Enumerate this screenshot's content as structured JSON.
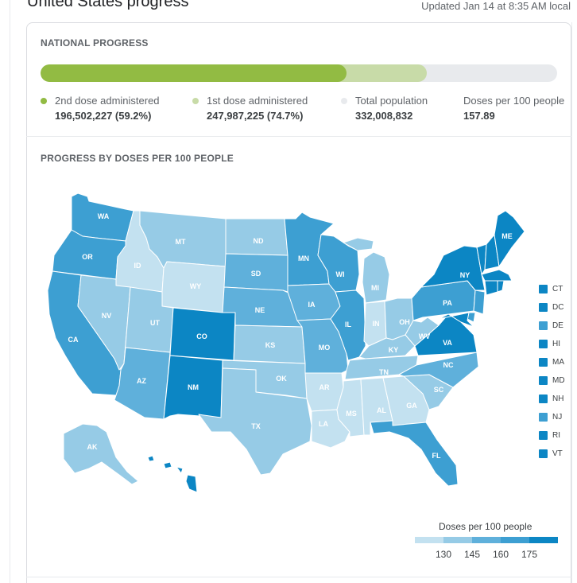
{
  "header": {
    "title": "United States progress",
    "updated": "Updated Jan 14 at 8:35 AM local"
  },
  "national": {
    "section_title": "NATIONAL PROGRESS",
    "second_dose_fraction": 0.592,
    "first_dose_fraction": 0.747,
    "stats": [
      {
        "label": "2nd dose administered",
        "value": "196,502,227 (59.2%)",
        "color": "#92bb43"
      },
      {
        "label": "1st dose administered",
        "value": "247,987,225 (74.7%)",
        "color": "#c8dba8"
      },
      {
        "label": "Total population",
        "value": "332,008,832",
        "color": "#e8eaed"
      },
      {
        "label": "Doses per 100 people",
        "value": "157.89",
        "color": ""
      }
    ]
  },
  "map_section": {
    "title": "PROGRESS BY DOSES PER 100 PEOPLE",
    "colors": {
      "c1": "#c3e1f0",
      "c2": "#96cbe6",
      "c3": "#5fb0db",
      "c4": "#3d9fd2",
      "c5": "#0c86c4"
    },
    "states": {
      "WA": "WA",
      "OR": "OR",
      "CA": "CA",
      "ID": "ID",
      "NV": "NV",
      "MT": "MT",
      "WY": "WY",
      "UT": "UT",
      "AZ": "AZ",
      "CO": "CO",
      "NM": "NM",
      "ND": "ND",
      "SD": "SD",
      "NE": "NE",
      "KS": "KS",
      "OK": "OK",
      "TX": "TX",
      "MN": "MN",
      "IA": "IA",
      "MO": "MO",
      "AR": "AR",
      "LA": "LA",
      "WI": "WI",
      "IL": "IL",
      "MI": "MI",
      "IN": "IN",
      "OH": "OH",
      "KY": "KY",
      "TN": "TN",
      "MS": "MS",
      "AL": "AL",
      "GA": "GA",
      "FL": "FL",
      "SC": "SC",
      "NC": "NC",
      "VA": "VA",
      "WV": "WV",
      "PA": "PA",
      "NY": "NY",
      "ME": "ME",
      "AK": "AK"
    },
    "small_states": [
      {
        "label": "CT",
        "color": "#0c86c4"
      },
      {
        "label": "DC",
        "color": "#0c86c4"
      },
      {
        "label": "DE",
        "color": "#3d9fd2"
      },
      {
        "label": "HI",
        "color": "#0c86c4"
      },
      {
        "label": "MA",
        "color": "#0c86c4"
      },
      {
        "label": "MD",
        "color": "#0c86c4"
      },
      {
        "label": "NH",
        "color": "#0c86c4"
      },
      {
        "label": "NJ",
        "color": "#3d9fd2"
      },
      {
        "label": "RI",
        "color": "#0c86c4"
      },
      {
        "label": "VT",
        "color": "#0c86c4"
      }
    ],
    "scale": {
      "title": "Doses per 100 people",
      "ticks": [
        "130",
        "145",
        "160",
        "175"
      ]
    }
  }
}
